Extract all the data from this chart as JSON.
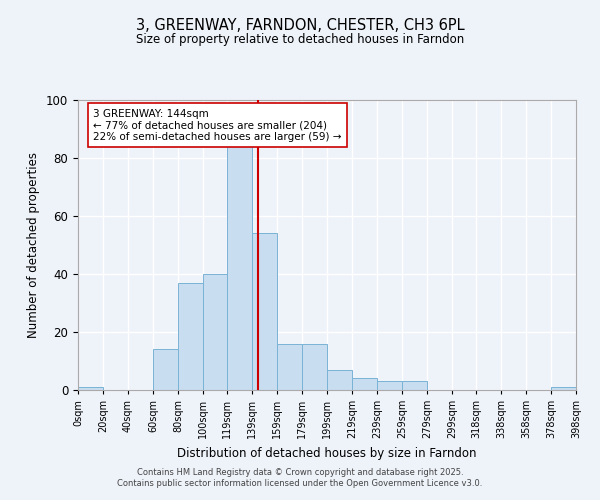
{
  "title": "3, GREENWAY, FARNDON, CHESTER, CH3 6PL",
  "subtitle": "Size of property relative to detached houses in Farndon",
  "xlabel": "Distribution of detached houses by size in Farndon",
  "ylabel": "Number of detached properties",
  "bar_color": "#c8ddef",
  "bar_edgecolor": "#7ab3d6",
  "bg_color": "#eef2f9",
  "grid_color": "#ffffff",
  "vline_x": 144,
  "vline_color": "#cc0000",
  "annotation_title": "3 GREENWAY: 144sqm",
  "annotation_line1": "← 77% of detached houses are smaller (204)",
  "annotation_line2": "22% of semi-detached houses are larger (59) →",
  "annotation_box_color": "#ffffff",
  "annotation_box_edgecolor": "#cc0000",
  "bin_edges": [
    0,
    20,
    40,
    60,
    80,
    100,
    119,
    139,
    159,
    179,
    199,
    219,
    239,
    259,
    279,
    299,
    318,
    338,
    358,
    378,
    398
  ],
  "bin_heights": [
    1,
    0,
    0,
    14,
    37,
    40,
    84,
    54,
    16,
    16,
    7,
    4,
    3,
    3,
    0,
    0,
    0,
    0,
    0,
    1
  ],
  "ylim": [
    0,
    100
  ],
  "tick_labels": [
    "0sqm",
    "20sqm",
    "40sqm",
    "60sqm",
    "80sqm",
    "100sqm",
    "119sqm",
    "139sqm",
    "159sqm",
    "179sqm",
    "199sqm",
    "219sqm",
    "239sqm",
    "259sqm",
    "279sqm",
    "299sqm",
    "318sqm",
    "338sqm",
    "358sqm",
    "378sqm",
    "398sqm"
  ],
  "footer1": "Contains HM Land Registry data © Crown copyright and database right 2025.",
  "footer2": "Contains public sector information licensed under the Open Government Licence v3.0."
}
